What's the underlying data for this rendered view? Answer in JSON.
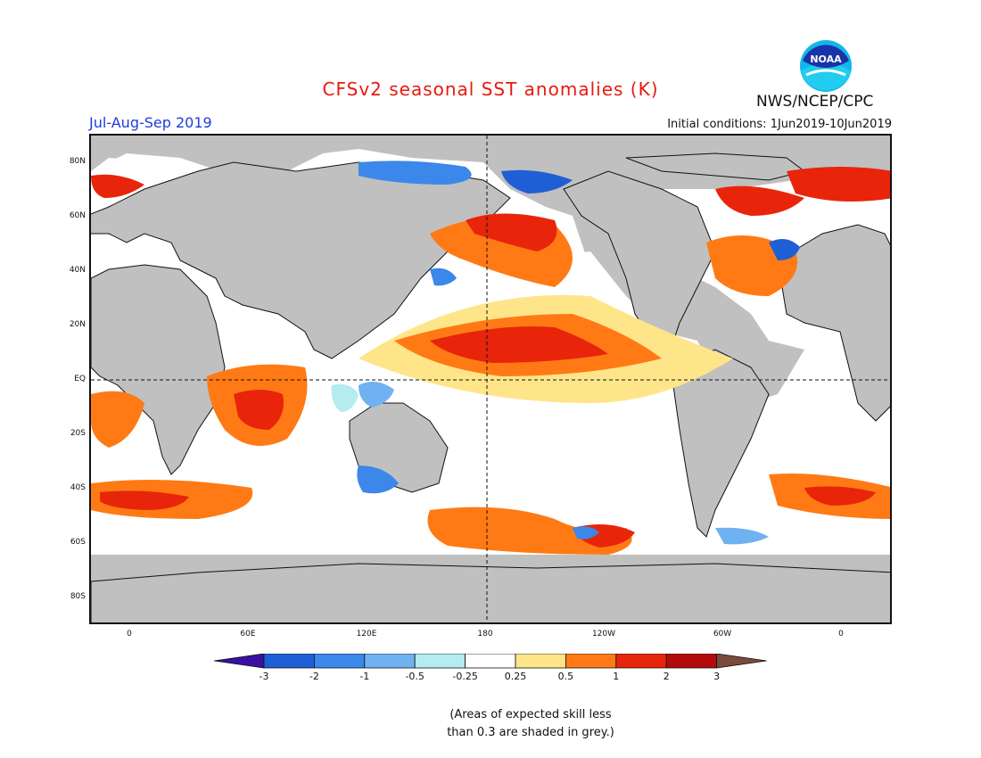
{
  "title": "CFSv2 seasonal SST anomalies (K)",
  "season": "Jul-Aug-Sep 2019",
  "initial_conditions": "Initial conditions: 1Jun2019-10Jun2019",
  "agency": "NWS/NCEP/CPC",
  "logo_text": "NOAA",
  "lat_labels": [
    "80N",
    "60N",
    "40N",
    "20N",
    "EQ",
    "20S",
    "40S",
    "60S",
    "80S"
  ],
  "lon_labels": [
    "0",
    "60E",
    "120E",
    "180",
    "120W",
    "60W",
    "0"
  ],
  "colorbar": {
    "labels": [
      "-3",
      "-2",
      "-1",
      "-0.5",
      "-0.25",
      "0.25",
      "0.5",
      "1",
      "2",
      "3"
    ],
    "colors": [
      "#3a10a0",
      "#1f5fd6",
      "#3c87ea",
      "#6fb2f2",
      "#b4ecf2",
      "#ffffff",
      "#ffe58a",
      "#ff7a14",
      "#e8250a",
      "#b30b0b",
      "#7a4b3a"
    ]
  },
  "note": [
    "(Areas of expected skill less",
    "than 0.3 are shaded in grey.)"
  ],
  "colors": {
    "land": "#c0c0c0",
    "title": "#e8190f",
    "season": "#1e3cdc",
    "grid": "#111111"
  }
}
